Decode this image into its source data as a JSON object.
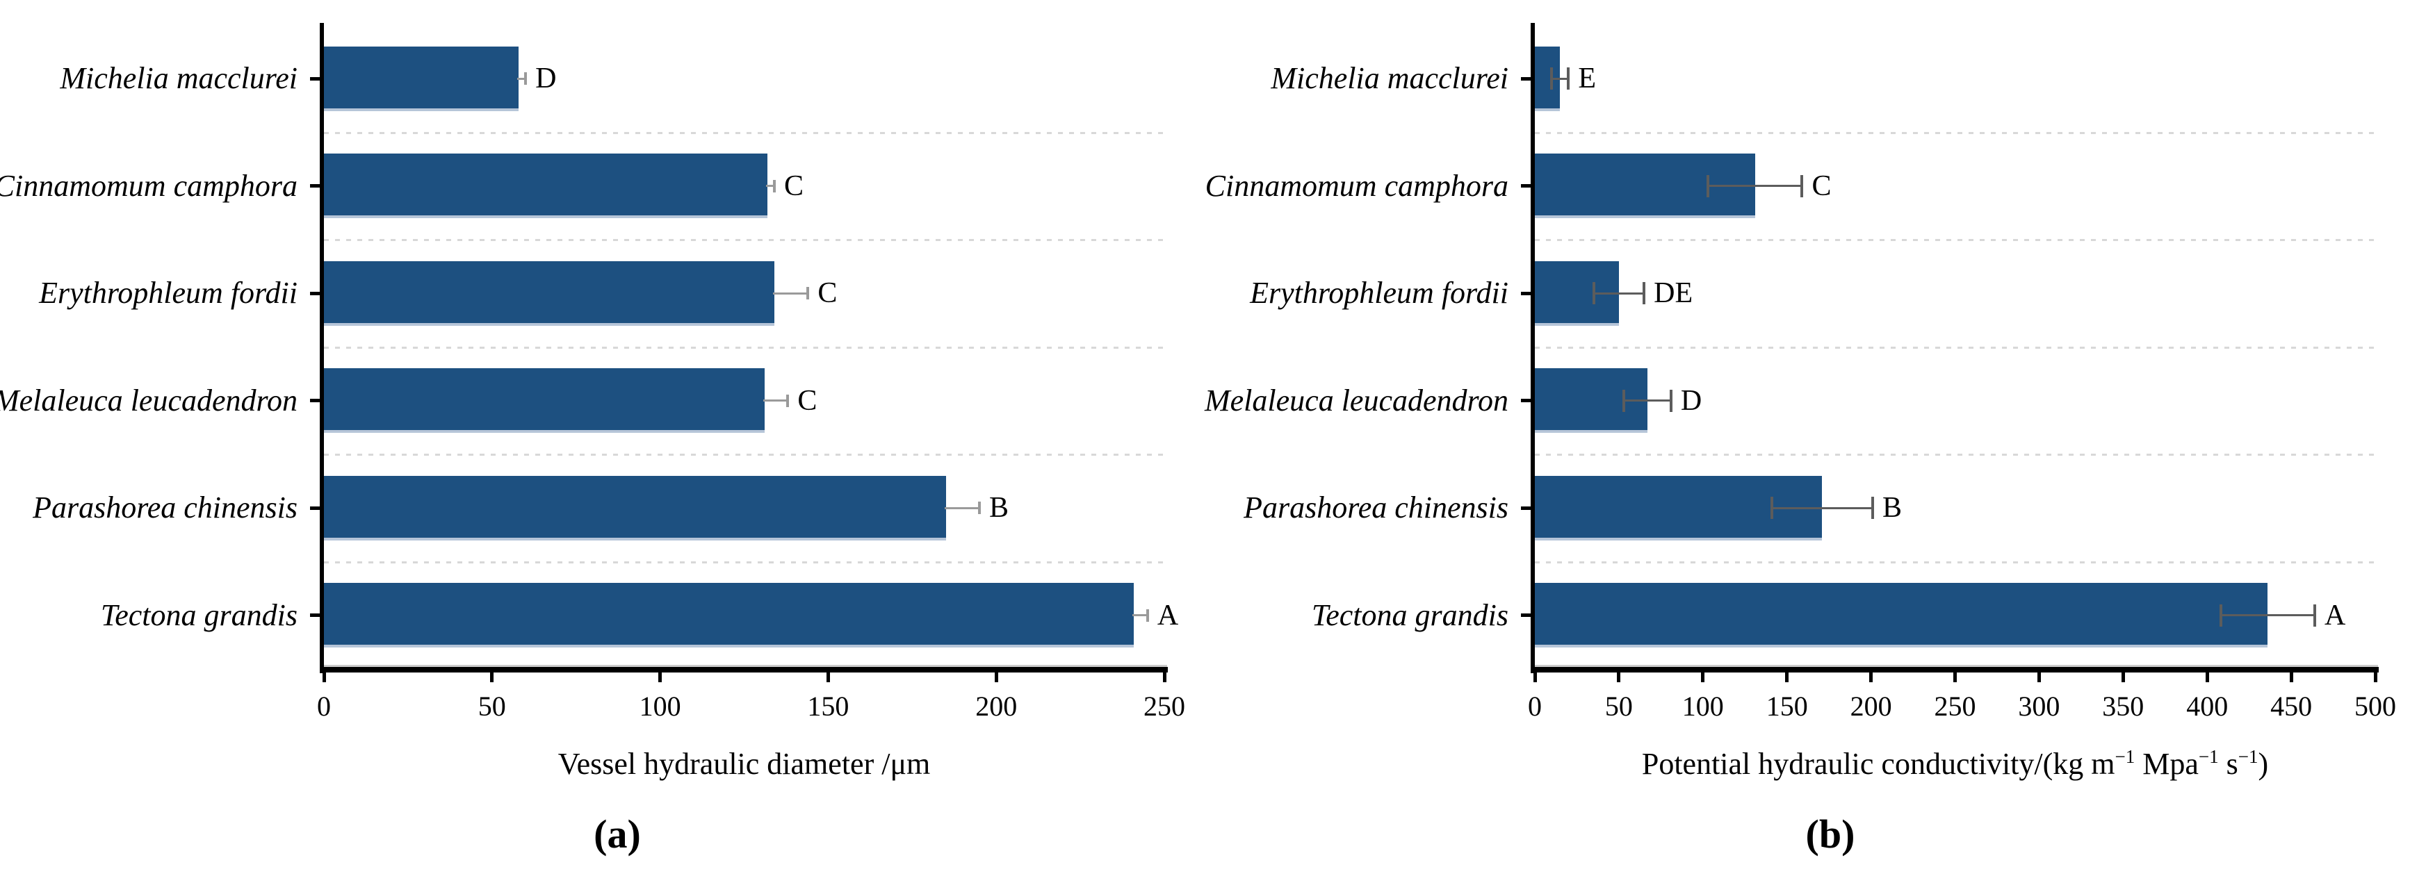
{
  "colors": {
    "bar": "#1d5080",
    "bar_bottom_edge": "#b6c5d8",
    "error_line_panel_a": "#9a9a9a",
    "error_line_panel_b": "#5c5c5c",
    "gridline": "#d8d8d8",
    "axis": "#000000"
  },
  "chart_data": [
    {
      "type": "bar",
      "orientation": "horizontal",
      "panel_key": "a",
      "panel_label": "(a)",
      "xlabel": "Vessel hydraulic diameter /μm",
      "xlim": [
        0,
        250
      ],
      "xticks": [
        0,
        50,
        100,
        150,
        200,
        250
      ],
      "grid": "horizontal dashed lines between categories",
      "legend": null,
      "categories": [
        "Michelia macclurei",
        "Cinnamomum camphora",
        "Erythrophleum fordii",
        "Melaleuca leucadendron",
        "Parashorea chinensis",
        "Tectona grandis"
      ],
      "values": [
        58,
        132,
        134,
        131,
        185,
        241
      ],
      "errors": [
        2,
        2,
        10,
        7,
        10,
        4
      ],
      "error_side": "right",
      "sig_letters": [
        "D",
        "C",
        "C",
        "C",
        "B",
        "A"
      ]
    },
    {
      "type": "bar",
      "orientation": "horizontal",
      "panel_key": "b",
      "panel_label": "(b)",
      "xlabel": "Potential hydraulic conductivity/(kg m−1 Mpa−1 s−1)",
      "xlabel_runs": [
        {
          "t": "Potential hydraulic conductivity/(kg m"
        },
        {
          "t": "−1",
          "sup": true
        },
        {
          "t": " Mpa",
          "sup": false
        },
        {
          "t": "−1",
          "sup": true
        },
        {
          "t": " s",
          "sup": false
        },
        {
          "t": "−1",
          "sup": true
        },
        {
          "t": ")"
        }
      ],
      "xlim": [
        0,
        500
      ],
      "xticks": [
        0,
        50,
        100,
        150,
        200,
        250,
        300,
        350,
        400,
        450,
        500
      ],
      "grid": "horizontal dashed lines between categories",
      "legend": null,
      "categories": [
        "Michelia macclurei",
        "Cinnamomum camphora",
        "Erythrophleum fordii",
        "Melaleuca leucadendron",
        "Parashorea chinensis",
        "Tectona grandis"
      ],
      "values": [
        15,
        131,
        50,
        67,
        171,
        436
      ],
      "errors": [
        5,
        28,
        15,
        14,
        30,
        28
      ],
      "error_side": "both",
      "sig_letters": [
        "E",
        "C",
        "DE",
        "D",
        "B",
        "A"
      ]
    }
  ]
}
